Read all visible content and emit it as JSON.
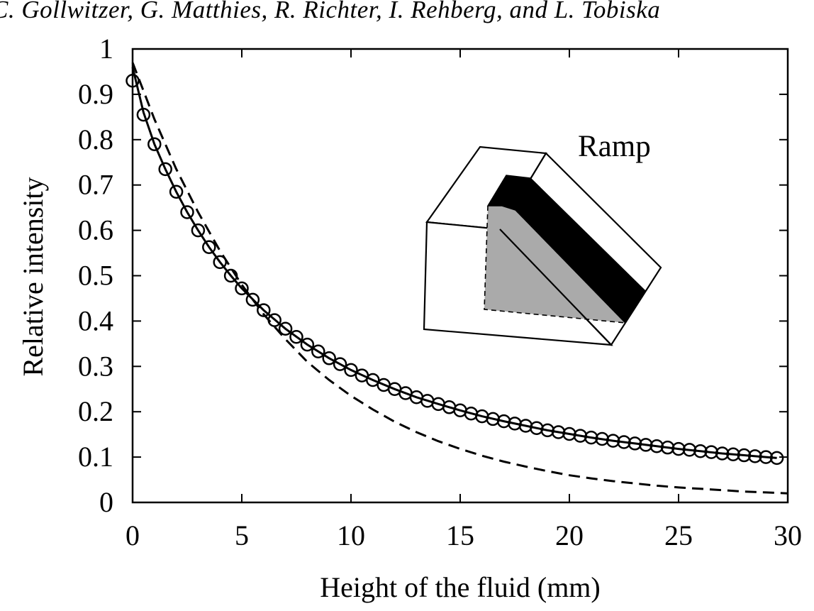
{
  "header": {
    "authors": "C. Gollwitzer, G. Matthies, R. Richter, I. Rehberg, and L. Tobiska"
  },
  "chart_data": {
    "type": "line",
    "xlabel": "Height of the fluid (mm)",
    "ylabel": "Relative intensity",
    "xlim": [
      0,
      30
    ],
    "ylim": [
      0,
      1
    ],
    "x_ticks": [
      0,
      5,
      10,
      15,
      20,
      25,
      30
    ],
    "y_ticks": [
      0,
      0.1,
      0.2,
      0.3,
      0.4,
      0.5,
      0.6,
      0.7,
      0.8,
      0.9,
      1
    ],
    "x_tick_labels": [
      "0",
      "5",
      "10",
      "15",
      "20",
      "25",
      "30"
    ],
    "y_tick_labels": [
      "0",
      "0.1",
      "0.2",
      "0.3",
      "0.4",
      "0.5",
      "0.6",
      "0.7",
      "0.8",
      "0.9",
      "1"
    ],
    "grid": false,
    "series": [
      {
        "style": "markers",
        "marker": "open-circle",
        "x": [
          0,
          0.5,
          1,
          1.5,
          2,
          2.5,
          3,
          3.5,
          4,
          4.5,
          5,
          5.5,
          6,
          6.5,
          7,
          7.5,
          8,
          8.5,
          9,
          9.5,
          10,
          10.5,
          11,
          11.5,
          12,
          12.5,
          13,
          13.5,
          14,
          14.5,
          15,
          15.5,
          16,
          16.5,
          17,
          17.5,
          18,
          18.5,
          19,
          19.5,
          20,
          20.5,
          21,
          21.5,
          22,
          22.5,
          23,
          23.5,
          24,
          24.5,
          25,
          25.5,
          26,
          26.5,
          27,
          27.5,
          28,
          28.5,
          29,
          29.5
        ],
        "y": [
          0.93,
          0.855,
          0.79,
          0.735,
          0.685,
          0.64,
          0.6,
          0.563,
          0.53,
          0.5,
          0.472,
          0.447,
          0.424,
          0.402,
          0.383,
          0.365,
          0.348,
          0.333,
          0.318,
          0.305,
          0.292,
          0.28,
          0.27,
          0.259,
          0.25,
          0.241,
          0.232,
          0.224,
          0.217,
          0.21,
          0.203,
          0.196,
          0.19,
          0.184,
          0.179,
          0.174,
          0.169,
          0.164,
          0.159,
          0.155,
          0.151,
          0.147,
          0.143,
          0.14,
          0.136,
          0.133,
          0.13,
          0.127,
          0.124,
          0.121,
          0.118,
          0.116,
          0.113,
          0.111,
          0.108,
          0.106,
          0.104,
          0.102,
          0.1,
          0.098
        ]
      },
      {
        "style": "solid",
        "x": [
          0,
          0.5,
          1,
          1.5,
          2,
          2.5,
          3,
          3.5,
          4,
          4.5,
          5,
          6,
          7,
          8,
          9,
          10,
          11,
          12,
          13,
          14,
          15,
          16,
          17,
          18,
          19,
          20,
          21,
          22,
          23,
          24,
          25,
          26,
          27,
          28,
          29,
          29.5
        ],
        "y": [
          0.96,
          0.86,
          0.79,
          0.735,
          0.685,
          0.64,
          0.6,
          0.563,
          0.53,
          0.5,
          0.472,
          0.424,
          0.383,
          0.348,
          0.318,
          0.292,
          0.27,
          0.25,
          0.232,
          0.217,
          0.203,
          0.19,
          0.179,
          0.169,
          0.159,
          0.151,
          0.143,
          0.136,
          0.13,
          0.124,
          0.118,
          0.113,
          0.108,
          0.104,
          0.1,
          0.098
        ]
      },
      {
        "style": "dashed",
        "x": [
          0,
          1,
          2,
          3,
          4,
          5,
          6,
          7,
          8,
          9,
          10,
          11,
          12,
          13,
          14,
          15,
          16,
          17,
          18,
          19,
          20,
          21,
          22,
          23,
          24,
          25,
          26,
          27,
          28,
          29,
          30
        ],
        "y": [
          0.97,
          0.845,
          0.735,
          0.64,
          0.555,
          0.48,
          0.415,
          0.36,
          0.31,
          0.27,
          0.235,
          0.205,
          0.178,
          0.155,
          0.135,
          0.118,
          0.103,
          0.09,
          0.079,
          0.069,
          0.06,
          0.053,
          0.047,
          0.042,
          0.037,
          0.033,
          0.03,
          0.027,
          0.024,
          0.022,
          0.02
        ]
      }
    ],
    "annotations": [
      {
        "text": "Ramp",
        "location": "inset-top-right"
      }
    ]
  }
}
